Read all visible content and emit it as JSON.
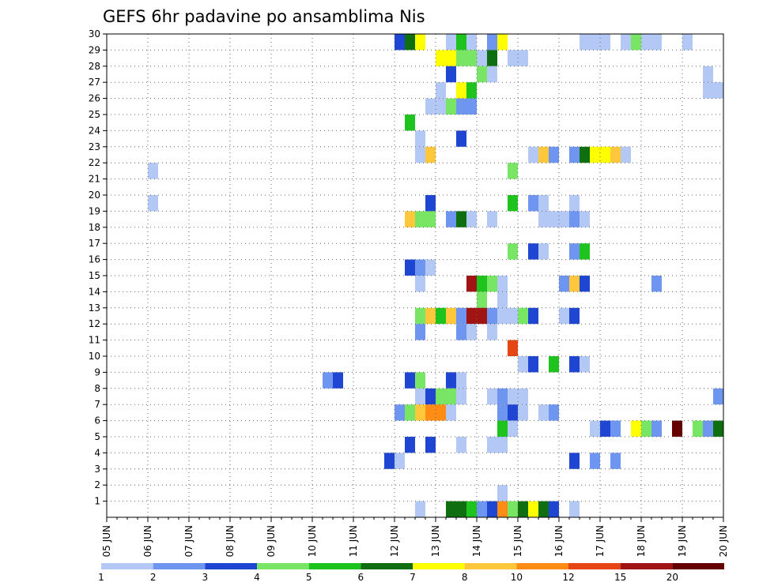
{
  "chart_data": {
    "type": "heatmap",
    "title": "GEFS 6hr padavine po ansamblima Nis",
    "xlabel": "",
    "ylabel": "",
    "x_tick_labels": [
      "05 JUN",
      "06 JUN",
      "07 JUN",
      "08 JUN",
      "09 JUN",
      "10 JUN",
      "11 JUN",
      "12 JUN",
      "13 JUN",
      "14 JUN",
      "15 JUN",
      "16 JUN",
      "17 JUN",
      "18 JUN",
      "19 JUN",
      "20 JUN"
    ],
    "y_tick_labels": [
      "1",
      "2",
      "3",
      "4",
      "5",
      "6",
      "7",
      "8",
      "9",
      "10",
      "11",
      "12",
      "13",
      "14",
      "15",
      "16",
      "17",
      "18",
      "19",
      "20",
      "21",
      "22",
      "23",
      "24",
      "25",
      "26",
      "27",
      "28",
      "29",
      "30"
    ],
    "x_range": [
      0,
      15
    ],
    "y_range": [
      0,
      30
    ],
    "cell_width_days": 0.25,
    "grid": true,
    "color_levels": [
      "1",
      "2",
      "3",
      "4",
      "5",
      "6",
      "7",
      "8",
      "10",
      "12",
      "15",
      "20"
    ],
    "colors": [
      "#b4c8f5",
      "#6e96f0",
      "#1e46d2",
      "#78e664",
      "#1ec31e",
      "#0f6e0f",
      "#ffff00",
      "#ffc83c",
      "#ff8c14",
      "#e64614",
      "#a01414",
      "#640000"
    ],
    "cells": [
      {
        "x": 12.0,
        "y": 29,
        "c": 2
      },
      {
        "x": 12.25,
        "y": 29,
        "c": 5
      },
      {
        "x": 12.5,
        "y": 29,
        "c": 6
      },
      {
        "x": 13.25,
        "y": 29,
        "c": 0
      },
      {
        "x": 13.5,
        "y": 29,
        "c": 4
      },
      {
        "x": 13.75,
        "y": 29,
        "c": 0
      },
      {
        "x": 14.25,
        "y": 29,
        "c": 1
      },
      {
        "x": 14.5,
        "y": 29,
        "c": 6
      },
      {
        "x": 17.0,
        "y": 29,
        "c": 0
      },
      {
        "x": 17.75,
        "y": 29,
        "c": 3
      },
      {
        "x": 18.0,
        "y": 29,
        "c": 0
      },
      {
        "x": 13.0,
        "y": 28,
        "c": 6
      },
      {
        "x": 13.25,
        "y": 28,
        "c": 6
      },
      {
        "x": 13.5,
        "y": 28,
        "c": 3
      },
      {
        "x": 13.75,
        "y": 28,
        "c": 3
      },
      {
        "x": 14.0,
        "y": 28,
        "c": 0
      },
      {
        "x": 14.25,
        "y": 28,
        "c": 5
      },
      {
        "x": 14.75,
        "y": 28,
        "c": 0
      },
      {
        "x": 15.0,
        "y": 28,
        "c": 0
      },
      {
        "x": 20.75,
        "y": 28,
        "c": 2
      },
      {
        "x": 21.0,
        "y": 28,
        "c": 3
      },
      {
        "x": 13.25,
        "y": 27,
        "c": 2
      },
      {
        "x": 14.0,
        "y": 27,
        "c": 3
      },
      {
        "x": 14.25,
        "y": 27,
        "c": 0
      },
      {
        "x": 19.5,
        "y": 27,
        "c": 0
      },
      {
        "x": 20.25,
        "y": 27,
        "c": 0
      },
      {
        "x": 13.0,
        "y": 26,
        "c": 0
      },
      {
        "x": 13.5,
        "y": 26,
        "c": 6
      },
      {
        "x": 13.75,
        "y": 26,
        "c": 4
      },
      {
        "x": 19.5,
        "y": 26,
        "c": 0
      },
      {
        "x": 19.75,
        "y": 26,
        "c": 0
      },
      {
        "x": 20.0,
        "y": 26,
        "c": 7
      },
      {
        "x": 20.25,
        "y": 26,
        "c": 1
      },
      {
        "x": 20.5,
        "y": 26,
        "c": 1
      },
      {
        "x": 20.75,
        "y": 26,
        "c": 2
      },
      {
        "x": 12.75,
        "y": 25,
        "c": 0
      },
      {
        "x": 13.0,
        "y": 25,
        "c": 0
      },
      {
        "x": 13.25,
        "y": 25,
        "c": 3
      },
      {
        "x": 13.5,
        "y": 25,
        "c": 1
      },
      {
        "x": 13.75,
        "y": 25,
        "c": 1
      },
      {
        "x": 12.25,
        "y": 24,
        "c": 4
      },
      {
        "x": 12.5,
        "y": 23,
        "c": 0
      },
      {
        "x": 13.5,
        "y": 23,
        "c": 2
      },
      {
        "x": 12.5,
        "y": 22,
        "c": 0
      },
      {
        "x": 12.75,
        "y": 22,
        "c": 7
      },
      {
        "x": 15.25,
        "y": 22,
        "c": 0
      },
      {
        "x": 15.5,
        "y": 22,
        "c": 7
      },
      {
        "x": 15.75,
        "y": 22,
        "c": 1
      },
      {
        "x": 16.25,
        "y": 22,
        "c": 1
      },
      {
        "x": 16.5,
        "y": 22,
        "c": 5
      },
      {
        "x": 16.75,
        "y": 22,
        "c": 6
      },
      {
        "x": 17.0,
        "y": 22,
        "c": 6
      },
      {
        "x": 17.25,
        "y": 22,
        "c": 7
      },
      {
        "x": 17.5,
        "y": 22,
        "c": 0
      },
      {
        "x": 6.0,
        "y": 21,
        "c": 0
      },
      {
        "x": 14.75,
        "y": 21,
        "c": 3
      },
      {
        "x": 6.0,
        "y": 19,
        "c": 0
      },
      {
        "x": 12.75,
        "y": 19,
        "c": 2
      },
      {
        "x": 14.75,
        "y": 19,
        "c": 4
      },
      {
        "x": 15.25,
        "y": 19,
        "c": 1
      },
      {
        "x": 15.5,
        "y": 19,
        "c": 0
      },
      {
        "x": 16.25,
        "y": 19,
        "c": 0
      },
      {
        "x": 20.75,
        "y": 19,
        "c": 7
      },
      {
        "x": 21.0,
        "y": 19,
        "c": 2
      },
      {
        "x": 12.25,
        "y": 18,
        "c": 7
      },
      {
        "x": 12.5,
        "y": 18,
        "c": 3
      },
      {
        "x": 12.75,
        "y": 18,
        "c": 3
      },
      {
        "x": 13.25,
        "y": 18,
        "c": 1
      },
      {
        "x": 13.5,
        "y": 18,
        "c": 5
      },
      {
        "x": 13.75,
        "y": 18,
        "c": 0
      },
      {
        "x": 14.25,
        "y": 18,
        "c": 0
      },
      {
        "x": 15.5,
        "y": 18,
        "c": 0
      },
      {
        "x": 15.75,
        "y": 18,
        "c": 0
      },
      {
        "x": 16.0,
        "y": 18,
        "c": 0
      },
      {
        "x": 16.25,
        "y": 18,
        "c": 1
      },
      {
        "x": 16.5,
        "y": 18,
        "c": 0
      },
      {
        "x": 20.75,
        "y": 18,
        "c": 2
      },
      {
        "x": 21.0,
        "y": 18,
        "c": 2
      },
      {
        "x": 14.75,
        "y": 16,
        "c": 3
      },
      {
        "x": 15.25,
        "y": 16,
        "c": 2
      },
      {
        "x": 15.5,
        "y": 16,
        "c": 0
      },
      {
        "x": 16.25,
        "y": 16,
        "c": 1
      },
      {
        "x": 16.5,
        "y": 16,
        "c": 4
      },
      {
        "x": 12.25,
        "y": 15,
        "c": 2
      },
      {
        "x": 12.5,
        "y": 15,
        "c": 1
      },
      {
        "x": 12.75,
        "y": 15,
        "c": 0
      },
      {
        "x": 20.5,
        "y": 15,
        "c": 1
      },
      {
        "x": 20.75,
        "y": 15,
        "c": 0
      },
      {
        "x": 12.5,
        "y": 14,
        "c": 0
      },
      {
        "x": 13.75,
        "y": 14,
        "c": 10
      },
      {
        "x": 14.0,
        "y": 14,
        "c": 4
      },
      {
        "x": 14.25,
        "y": 14,
        "c": 3
      },
      {
        "x": 14.5,
        "y": 14,
        "c": 0
      },
      {
        "x": 16.0,
        "y": 14,
        "c": 1
      },
      {
        "x": 16.25,
        "y": 14,
        "c": 7
      },
      {
        "x": 16.5,
        "y": 14,
        "c": 2
      },
      {
        "x": 18.25,
        "y": 14,
        "c": 1
      },
      {
        "x": 14.0,
        "y": 13,
        "c": 3
      },
      {
        "x": 14.5,
        "y": 13,
        "c": 0
      },
      {
        "x": 12.5,
        "y": 12,
        "c": 3
      },
      {
        "x": 12.75,
        "y": 12,
        "c": 7
      },
      {
        "x": 13.0,
        "y": 12,
        "c": 4
      },
      {
        "x": 13.25,
        "y": 12,
        "c": 7
      },
      {
        "x": 13.5,
        "y": 12,
        "c": 1
      },
      {
        "x": 13.75,
        "y": 12,
        "c": 10
      },
      {
        "x": 14.0,
        "y": 12,
        "c": 10
      },
      {
        "x": 14.25,
        "y": 12,
        "c": 1
      },
      {
        "x": 14.5,
        "y": 12,
        "c": 0
      },
      {
        "x": 14.75,
        "y": 12,
        "c": 0
      },
      {
        "x": 15.0,
        "y": 12,
        "c": 3
      },
      {
        "x": 15.25,
        "y": 12,
        "c": 2
      },
      {
        "x": 16.0,
        "y": 12,
        "c": 0
      },
      {
        "x": 16.25,
        "y": 12,
        "c": 2
      },
      {
        "x": 12.5,
        "y": 11,
        "c": 1
      },
      {
        "x": 13.5,
        "y": 11,
        "c": 1
      },
      {
        "x": 13.75,
        "y": 11,
        "c": 0
      },
      {
        "x": 14.25,
        "y": 11,
        "c": 0
      },
      {
        "x": 20.0,
        "y": 11,
        "c": 0
      },
      {
        "x": 20.25,
        "y": 11,
        "c": 2
      },
      {
        "x": 20.75,
        "y": 11,
        "c": 0
      },
      {
        "x": 14.75,
        "y": 10,
        "c": 9
      },
      {
        "x": 15.0,
        "y": 9,
        "c": 0
      },
      {
        "x": 15.25,
        "y": 9,
        "c": 2
      },
      {
        "x": 15.75,
        "y": 9,
        "c": 4
      },
      {
        "x": 16.25,
        "y": 9,
        "c": 2
      },
      {
        "x": 16.5,
        "y": 9,
        "c": 0
      },
      {
        "x": 10.25,
        "y": 8,
        "c": 1
      },
      {
        "x": 10.5,
        "y": 8,
        "c": 2
      },
      {
        "x": 12.25,
        "y": 8,
        "c": 2
      },
      {
        "x": 12.5,
        "y": 8,
        "c": 3
      },
      {
        "x": 13.25,
        "y": 8,
        "c": 2
      },
      {
        "x": 13.5,
        "y": 8,
        "c": 0
      },
      {
        "x": 12.5,
        "y": 7,
        "c": 0
      },
      {
        "x": 12.75,
        "y": 7,
        "c": 2
      },
      {
        "x": 13.0,
        "y": 7,
        "c": 3
      },
      {
        "x": 13.25,
        "y": 7,
        "c": 3
      },
      {
        "x": 13.5,
        "y": 7,
        "c": 0
      },
      {
        "x": 14.25,
        "y": 7,
        "c": 0
      },
      {
        "x": 14.5,
        "y": 7,
        "c": 1
      },
      {
        "x": 14.75,
        "y": 7,
        "c": 0
      },
      {
        "x": 15.0,
        "y": 7,
        "c": 0
      },
      {
        "x": 19.75,
        "y": 7,
        "c": 1
      },
      {
        "x": 20.0,
        "y": 7,
        "c": 0
      },
      {
        "x": 12.0,
        "y": 6,
        "c": 1
      },
      {
        "x": 12.25,
        "y": 6,
        "c": 3
      },
      {
        "x": 12.5,
        "y": 6,
        "c": 7
      },
      {
        "x": 12.75,
        "y": 6,
        "c": 8
      },
      {
        "x": 13.0,
        "y": 6,
        "c": 8
      },
      {
        "x": 13.25,
        "y": 6,
        "c": 0
      },
      {
        "x": 14.5,
        "y": 6,
        "c": 1
      },
      {
        "x": 14.75,
        "y": 6,
        "c": 2
      },
      {
        "x": 15.0,
        "y": 6,
        "c": 0
      },
      {
        "x": 15.5,
        "y": 6,
        "c": 0
      },
      {
        "x": 15.75,
        "y": 6,
        "c": 1
      },
      {
        "x": 14.5,
        "y": 5,
        "c": 4
      },
      {
        "x": 14.75,
        "y": 5,
        "c": 0
      },
      {
        "x": 16.75,
        "y": 5,
        "c": 0
      },
      {
        "x": 17.0,
        "y": 5,
        "c": 2
      },
      {
        "x": 17.25,
        "y": 5,
        "c": 1
      },
      {
        "x": 17.75,
        "y": 5,
        "c": 6
      },
      {
        "x": 18.0,
        "y": 5,
        "c": 3
      },
      {
        "x": 18.25,
        "y": 5,
        "c": 1
      },
      {
        "x": 18.75,
        "y": 5,
        "c": 11
      },
      {
        "x": 19.25,
        "y": 5,
        "c": 3
      },
      {
        "x": 19.5,
        "y": 5,
        "c": 1
      },
      {
        "x": 19.75,
        "y": 5,
        "c": 5
      },
      {
        "x": 12.25,
        "y": 4,
        "c": 2
      },
      {
        "x": 12.75,
        "y": 4,
        "c": 2
      },
      {
        "x": 13.5,
        "y": 4,
        "c": 0
      },
      {
        "x": 14.25,
        "y": 4,
        "c": 0
      },
      {
        "x": 14.5,
        "y": 4,
        "c": 0
      },
      {
        "x": 11.75,
        "y": 3,
        "c": 2
      },
      {
        "x": 12.0,
        "y": 3,
        "c": 0
      },
      {
        "x": 16.25,
        "y": 3,
        "c": 2
      },
      {
        "x": 16.75,
        "y": 3,
        "c": 1
      },
      {
        "x": 17.25,
        "y": 3,
        "c": 1
      },
      {
        "x": 20.75,
        "y": 3,
        "c": 0
      },
      {
        "x": 21.0,
        "y": 3,
        "c": 0
      },
      {
        "x": 14.5,
        "y": 1,
        "c": 0
      },
      {
        "x": 12.5,
        "y": 0,
        "c": 0
      },
      {
        "x": 13.25,
        "y": 0,
        "c": 5
      },
      {
        "x": 13.5,
        "y": 0,
        "c": 5
      },
      {
        "x": 13.75,
        "y": 0,
        "c": 4
      },
      {
        "x": 14.0,
        "y": 0,
        "c": 1
      },
      {
        "x": 14.25,
        "y": 0,
        "c": 2
      },
      {
        "x": 14.5,
        "y": 0,
        "c": 8
      },
      {
        "x": 14.75,
        "y": 0,
        "c": 3
      },
      {
        "x": 15.0,
        "y": 0,
        "c": 5
      },
      {
        "x": 15.25,
        "y": 0,
        "c": 6
      },
      {
        "x": 15.5,
        "y": 0,
        "c": 5
      },
      {
        "x": 15.75,
        "y": 0,
        "c": 2
      },
      {
        "x": 16.25,
        "y": 0,
        "c": 0
      },
      {
        "x": 16.5,
        "y": 29,
        "c": 0
      },
      {
        "x": 16.75,
        "y": 29,
        "c": 0
      },
      {
        "x": 17.5,
        "y": 29,
        "c": 0
      },
      {
        "x": 18.25,
        "y": 29,
        "c": 0
      },
      {
        "x": 19.0,
        "y": 29,
        "c": 0
      }
    ]
  }
}
